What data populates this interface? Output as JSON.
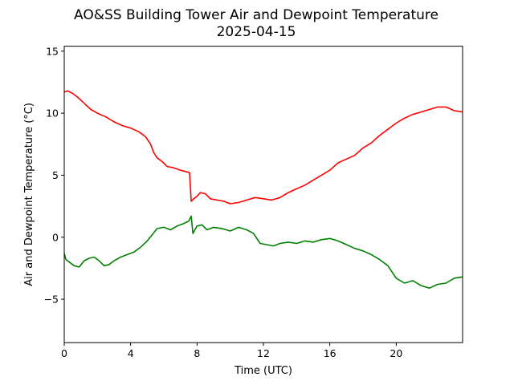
{
  "chart_data": {
    "type": "line",
    "title": "AO&SS Building Tower Air and Dewpoint Temperature",
    "subtitle": "2025-04-15",
    "xlabel": "Time (UTC)",
    "ylabel": "Air and Dewpoint Temperature (°C)",
    "xlim": [
      0,
      24
    ],
    "ylim": [
      -8.5,
      15.4
    ],
    "xticks": [
      0,
      4,
      8,
      12,
      16,
      20
    ],
    "xtick_labels": [
      "0",
      "4",
      "8",
      "12",
      "16",
      "20"
    ],
    "yticks": [
      -5,
      0,
      5,
      10,
      15
    ],
    "ytick_labels": [
      "−5",
      "0",
      "5",
      "10",
      "15"
    ],
    "grid": false,
    "legend": "none",
    "series": [
      {
        "color": "#ff0000",
        "x": [
          0,
          0.2,
          0.5,
          0.8,
          1.2,
          1.6,
          2.0,
          2.5,
          3.0,
          3.5,
          4.0,
          4.5,
          4.9,
          5.2,
          5.4,
          5.6,
          5.9,
          6.2,
          6.6,
          7.0,
          7.3,
          7.55,
          7.65,
          7.8,
          8.0,
          8.2,
          8.5,
          8.8,
          9.2,
          9.6,
          10.0,
          10.5,
          11.0,
          11.5,
          12.0,
          12.5,
          13.0,
          13.5,
          14.0,
          14.5,
          15.0,
          15.5,
          16.0,
          16.5,
          17.0,
          17.5,
          18.0,
          18.5,
          19.0,
          19.5,
          20.0,
          20.5,
          21.0,
          21.5,
          22.0,
          22.5,
          23.0,
          23.5,
          24.0
        ],
        "y": [
          11.7,
          11.8,
          11.6,
          11.3,
          10.8,
          10.3,
          10.0,
          9.7,
          9.3,
          9.0,
          8.8,
          8.5,
          8.1,
          7.5,
          6.8,
          6.4,
          6.1,
          5.7,
          5.6,
          5.4,
          5.3,
          5.2,
          2.9,
          3.1,
          3.3,
          3.6,
          3.5,
          3.1,
          3.0,
          2.9,
          2.7,
          2.8,
          3.0,
          3.2,
          3.1,
          3.0,
          3.2,
          3.6,
          3.9,
          4.2,
          4.6,
          5.0,
          5.4,
          6.0,
          6.3,
          6.6,
          7.2,
          7.6,
          8.2,
          8.7,
          9.2,
          9.6,
          9.9,
          10.1,
          10.3,
          10.5,
          10.5,
          10.2,
          10.1
        ]
      },
      {
        "color": "#008000",
        "x": [
          0,
          0.1,
          0.3,
          0.6,
          0.9,
          1.2,
          1.5,
          1.8,
          2.1,
          2.4,
          2.7,
          3.0,
          3.4,
          3.8,
          4.2,
          4.6,
          5.0,
          5.3,
          5.6,
          6.0,
          6.4,
          6.8,
          7.2,
          7.5,
          7.65,
          7.75,
          8.0,
          8.3,
          8.6,
          9.0,
          9.5,
          10.0,
          10.5,
          11.0,
          11.4,
          11.8,
          12.2,
          12.6,
          13.0,
          13.5,
          14.0,
          14.5,
          15.0,
          15.5,
          16.0,
          16.5,
          17.0,
          17.5,
          18.0,
          18.5,
          19.0,
          19.5,
          20.0,
          20.5,
          21.0,
          21.5,
          22.0,
          22.5,
          23.0,
          23.5,
          24.0
        ],
        "y": [
          -1.3,
          -1.8,
          -2.0,
          -2.3,
          -2.4,
          -1.9,
          -1.7,
          -1.6,
          -1.9,
          -2.3,
          -2.2,
          -1.9,
          -1.6,
          -1.4,
          -1.2,
          -0.8,
          -0.3,
          0.2,
          0.7,
          0.8,
          0.6,
          0.9,
          1.1,
          1.3,
          1.7,
          0.3,
          0.9,
          1.0,
          0.6,
          0.8,
          0.7,
          0.5,
          0.8,
          0.6,
          0.3,
          -0.5,
          -0.6,
          -0.7,
          -0.5,
          -0.4,
          -0.5,
          -0.3,
          -0.4,
          -0.2,
          -0.1,
          -0.3,
          -0.6,
          -0.9,
          -1.1,
          -1.4,
          -1.8,
          -2.3,
          -3.3,
          -3.7,
          -3.5,
          -3.9,
          -4.1,
          -3.8,
          -3.7,
          -3.3,
          -3.2
        ]
      }
    ]
  }
}
